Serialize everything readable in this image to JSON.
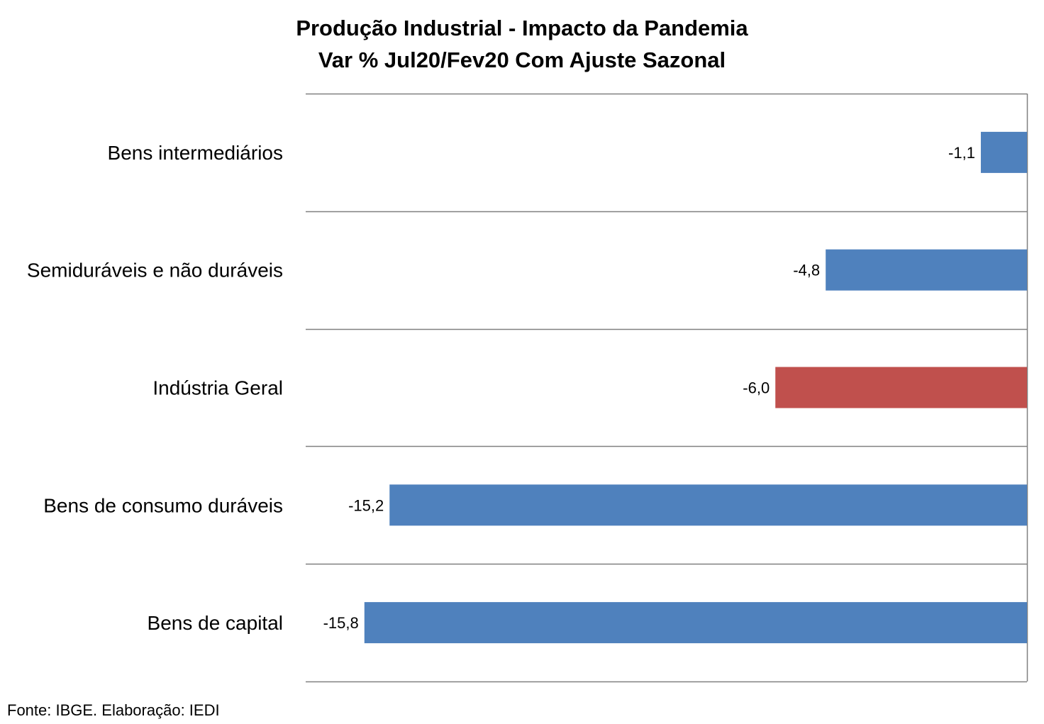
{
  "chart_data": {
    "type": "bar",
    "orientation": "horizontal",
    "title": "Produção Industrial - Impacto da Pandemia",
    "subtitle": "Var % Jul20/Fev20 Com Ajuste Sazonal",
    "categories": [
      "Bens intermediários",
      "Semiduráveis e não duráveis",
      "Indústria Geral",
      "Bens de consumo duráveis ",
      "Bens de capital"
    ],
    "values": [
      -1.1,
      -4.8,
      -6.0,
      -15.2,
      -15.8
    ],
    "data_labels": [
      "-1,1",
      "-4,8",
      "-6,0",
      "-15,2",
      "-15,8"
    ],
    "bar_colors": [
      "#4F81BD",
      "#4F81BD",
      "#C0504D",
      "#4F81BD",
      "#4F81BD"
    ],
    "xlim": [
      -17.2,
      0
    ],
    "gridlines": "horizontal separators between categories",
    "legend": "none",
    "axis_color": "#808080"
  },
  "source_note": "Fonte: IBGE. Elaboração: IEDI"
}
